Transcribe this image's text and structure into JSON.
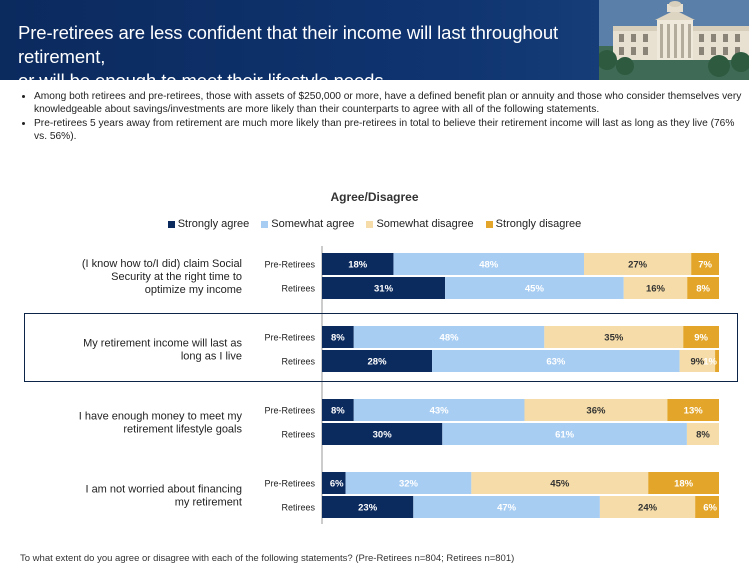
{
  "header": {
    "title_line1": "Pre-retirees are less confident that their income will last throughout retirement,",
    "title_line2": "or will be enough to meet their lifestyle needs.",
    "background_color": "#0f3470"
  },
  "bullets": [
    "Among both retirees and pre-retirees, those with assets of $250,000 or more, have a defined benefit plan or annuity and those who consider themselves very knowledgeable about savings/investments are more likely than their  counterparts to agree with all of the following statements.",
    "Pre-retirees 5 years away from retirement are much more likely than pre-retirees in total to believe their retirement income will last as long as they live (76% vs. 56%)."
  ],
  "footnote": "To what extent do you agree or disagree with each of the following statements? (Pre-Retirees n=804; Retirees n=801)",
  "chart_data": {
    "type": "bar",
    "orientation": "horizontal",
    "stacked": true,
    "title": "Agree/Disagree",
    "legend_position": "top",
    "series": [
      {
        "name": "Strongly agree",
        "color": "#0b2a5e",
        "label_color": "#ffffff"
      },
      {
        "name": "Somewhat agree",
        "color": "#a8cdf2",
        "label_color": "#ffffff"
      },
      {
        "name": "Somewhat disagree",
        "color": "#f5dca8",
        "label_color": "#333333"
      },
      {
        "name": "Strongly disagree",
        "color": "#e3a62a",
        "label_color": "#ffffff"
      }
    ],
    "groups": [
      {
        "statement": "(I know how to/I did) claim Social Security at the right time to optimize my income",
        "rows": [
          {
            "label": "Pre-Retirees",
            "values": [
              18,
              48,
              27,
              7
            ],
            "labels": [
              "18%",
              "48%",
              "27%",
              "7%"
            ]
          },
          {
            "label": "Retirees",
            "values": [
              31,
              45,
              16,
              8
            ],
            "labels": [
              "31%",
              "45%",
              "16%",
              "8%"
            ]
          }
        ]
      },
      {
        "statement": "My retirement income will last as long as I live",
        "highlighted": true,
        "rows": [
          {
            "label": "Pre-Retirees",
            "values": [
              8,
              48,
              35,
              9
            ],
            "labels": [
              "8%",
              "48%",
              "35%",
              "9%"
            ]
          },
          {
            "label": "Retirees",
            "values": [
              28,
              63,
              9,
              1
            ],
            "labels": [
              "28%",
              "63%",
              "9%",
              "1%"
            ]
          }
        ]
      },
      {
        "statement": "I have enough money to meet my retirement lifestyle goals",
        "rows": [
          {
            "label": "Pre-Retirees",
            "values": [
              8,
              43,
              36,
              13
            ],
            "labels": [
              "8%",
              "43%",
              "36%",
              "13%"
            ]
          },
          {
            "label": "Retirees",
            "values": [
              30,
              61,
              8,
              0
            ],
            "labels": [
              "30%",
              "61%",
              "8%",
              ""
            ]
          }
        ]
      },
      {
        "statement": "I am not worried about financing my retirement",
        "rows": [
          {
            "label": "Pre-Retirees",
            "values": [
              6,
              32,
              45,
              18
            ],
            "labels": [
              "6%",
              "32%",
              "45%",
              "18%"
            ]
          },
          {
            "label": "Retirees",
            "values": [
              23,
              47,
              24,
              6
            ],
            "labels": [
              "23%",
              "47%",
              "24%",
              "6%"
            ]
          }
        ]
      }
    ]
  }
}
